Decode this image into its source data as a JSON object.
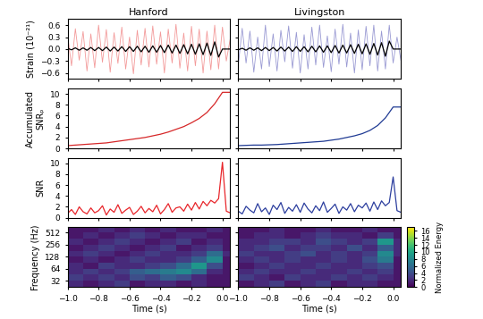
{
  "chart_data": [
    {
      "type": "line",
      "title": "Hanford",
      "ylabel": "Strain (10⁻²¹)",
      "tick_labels": "y",
      "x": [
        -1.0,
        -0.975,
        -0.95,
        -0.925,
        -0.9,
        -0.875,
        -0.85,
        -0.825,
        -0.8,
        -0.775,
        -0.75,
        -0.725,
        -0.7,
        -0.675,
        -0.65,
        -0.625,
        -0.6,
        -0.575,
        -0.55,
        -0.525,
        -0.5,
        -0.475,
        -0.45,
        -0.425,
        -0.4,
        -0.375,
        -0.35,
        -0.325,
        -0.3,
        -0.275,
        -0.25,
        -0.225,
        -0.2,
        -0.175,
        -0.15,
        -0.125,
        -0.1,
        -0.075,
        -0.05,
        -0.025,
        0.0,
        0.025,
        0.05
      ],
      "series": [
        {
          "color": "#f08080",
          "values": [
            0.35,
            -0.42,
            0.51,
            -0.28,
            0.44,
            -0.55,
            0.38,
            -0.47,
            0.6,
            -0.33,
            0.49,
            -0.58,
            0.41,
            -0.36,
            0.55,
            -0.5,
            0.3,
            -0.62,
            0.47,
            -0.4,
            0.52,
            -0.45,
            0.58,
            -0.38,
            0.43,
            -0.6,
            0.5,
            -0.35,
            0.62,
            -0.48,
            0.4,
            -0.55,
            0.57,
            -0.42,
            0.5,
            -0.6,
            0.45,
            -0.52,
            0.6,
            -0.5,
            0.55,
            -0.3,
            0.25
          ]
        },
        {
          "color": "#000000",
          "values": [
            0.02,
            -0.02,
            0.03,
            -0.03,
            0.03,
            -0.03,
            0.04,
            -0.04,
            0.04,
            -0.04,
            0.05,
            -0.05,
            0.05,
            -0.05,
            0.06,
            -0.06,
            0.06,
            -0.06,
            0.07,
            -0.07,
            0.07,
            -0.08,
            0.08,
            -0.08,
            0.09,
            -0.09,
            0.1,
            -0.1,
            0.1,
            -0.11,
            0.11,
            -0.12,
            0.12,
            -0.13,
            0.13,
            -0.14,
            0.15,
            -0.16,
            0.18,
            -0.2,
            0.0,
            0.0,
            0.0
          ]
        }
      ],
      "xlim": [
        -1.0,
        0.05
      ],
      "ylim": [
        -0.75,
        0.75
      ],
      "xticks": [
        {
          "value": -1.0,
          "label": "−1.0"
        },
        {
          "value": -0.8,
          "label": "−0.8"
        },
        {
          "value": -0.6,
          "label": "−0.6"
        },
        {
          "value": -0.4,
          "label": "−0.4"
        },
        {
          "value": -0.2,
          "label": "−0.2"
        },
        0.0
      ],
      "yticks": [
        {
          "value": -0.6,
          "label": "−0.6"
        },
        {
          "value": -0.3,
          "label": "−0.3"
        },
        0.0,
        0.3,
        0.6
      ]
    },
    {
      "type": "line",
      "title": "Livingston",
      "tick_labels": false,
      "x": [
        -1.0,
        -0.975,
        -0.95,
        -0.925,
        -0.9,
        -0.875,
        -0.85,
        -0.825,
        -0.8,
        -0.775,
        -0.75,
        -0.725,
        -0.7,
        -0.675,
        -0.65,
        -0.625,
        -0.6,
        -0.575,
        -0.55,
        -0.525,
        -0.5,
        -0.475,
        -0.45,
        -0.425,
        -0.4,
        -0.375,
        -0.35,
        -0.325,
        -0.3,
        -0.275,
        -0.25,
        -0.225,
        -0.2,
        -0.175,
        -0.15,
        -0.125,
        -0.1,
        -0.075,
        -0.05,
        -0.025,
        0.0,
        0.025,
        0.05
      ],
      "series": [
        {
          "color": "#8080c8",
          "values": [
            -0.4,
            0.52,
            -0.35,
            0.45,
            -0.58,
            0.3,
            -0.5,
            0.6,
            -0.44,
            0.38,
            -0.55,
            0.47,
            -0.32,
            0.58,
            -0.48,
            0.42,
            -0.6,
            0.36,
            -0.5,
            0.55,
            -0.4,
            0.6,
            -0.46,
            0.33,
            -0.57,
            0.5,
            -0.38,
            0.62,
            -0.45,
            0.4,
            -0.6,
            0.48,
            -0.52,
            0.57,
            -0.42,
            0.6,
            -0.55,
            0.45,
            -0.5,
            0.6,
            -0.35,
            0.3,
            -0.28
          ]
        },
        {
          "color": "#000000",
          "values": [
            -0.02,
            0.02,
            -0.03,
            0.03,
            -0.03,
            0.03,
            -0.04,
            0.04,
            -0.04,
            0.04,
            -0.05,
            0.05,
            -0.05,
            0.05,
            -0.06,
            0.06,
            -0.06,
            0.06,
            -0.07,
            0.07,
            -0.07,
            0.08,
            -0.08,
            0.08,
            -0.09,
            0.09,
            -0.1,
            0.1,
            -0.1,
            0.11,
            -0.11,
            0.12,
            -0.12,
            0.13,
            -0.13,
            0.14,
            -0.15,
            0.16,
            -0.18,
            0.2,
            0.0,
            0.0,
            0.0
          ]
        }
      ],
      "xlim": [
        -1.0,
        0.05
      ],
      "ylim": [
        -0.75,
        0.75
      ],
      "xticks": [
        {
          "value": -1.0,
          "label": "−1.0"
        },
        {
          "value": -0.8,
          "label": "−0.8"
        },
        {
          "value": -0.6,
          "label": "−0.6"
        },
        {
          "value": -0.4,
          "label": "−0.4"
        },
        {
          "value": -0.2,
          "label": "−0.2"
        },
        0.0
      ],
      "yticks": [
        {
          "value": -0.6,
          "label": "−0.6"
        },
        {
          "value": -0.3,
          "label": "−0.3"
        },
        0.0,
        0.3,
        0.6
      ]
    },
    {
      "type": "line",
      "ylabel": "Accumulated\nSNRₚ",
      "tick_labels": "y",
      "x": [
        -1.0,
        -0.95,
        -0.9,
        -0.85,
        -0.8,
        -0.75,
        -0.7,
        -0.65,
        -0.6,
        -0.55,
        -0.5,
        -0.45,
        -0.4,
        -0.35,
        -0.3,
        -0.25,
        -0.2,
        -0.15,
        -0.1,
        -0.05,
        0.0,
        0.05
      ],
      "series": [
        {
          "color": "#d62728",
          "values": [
            0.5,
            0.6,
            0.7,
            0.8,
            0.9,
            1.0,
            1.2,
            1.4,
            1.6,
            1.8,
            2.0,
            2.3,
            2.6,
            3.0,
            3.5,
            4.0,
            4.7,
            5.5,
            6.6,
            8.2,
            10.3,
            10.3
          ]
        }
      ],
      "xlim": [
        -1.0,
        0.05
      ],
      "ylim": [
        0,
        11
      ],
      "xticks": [
        {
          "value": -1.0,
          "label": "−1.0"
        },
        {
          "value": -0.8,
          "label": "−0.8"
        },
        {
          "value": -0.6,
          "label": "−0.6"
        },
        {
          "value": -0.4,
          "label": "−0.4"
        },
        {
          "value": -0.2,
          "label": "−0.2"
        },
        0.0
      ],
      "yticks": [
        0,
        2,
        4,
        6,
        8,
        10
      ]
    },
    {
      "type": "line",
      "tick_labels": false,
      "x": [
        -1.0,
        -0.95,
        -0.9,
        -0.85,
        -0.8,
        -0.75,
        -0.7,
        -0.65,
        -0.6,
        -0.55,
        -0.5,
        -0.45,
        -0.4,
        -0.35,
        -0.3,
        -0.25,
        -0.2,
        -0.15,
        -0.1,
        -0.05,
        0.0,
        0.05
      ],
      "series": [
        {
          "color": "#1f3a93",
          "values": [
            0.5,
            0.55,
            0.6,
            0.6,
            0.65,
            0.7,
            0.8,
            0.9,
            1.0,
            1.1,
            1.2,
            1.3,
            1.5,
            1.7,
            2.0,
            2.3,
            2.7,
            3.3,
            4.2,
            5.6,
            7.6,
            7.6
          ]
        }
      ],
      "xlim": [
        -1.0,
        0.05
      ],
      "ylim": [
        0,
        11
      ],
      "xticks": [
        {
          "value": -1.0,
          "label": "−1.0"
        },
        {
          "value": -0.8,
          "label": "−0.8"
        },
        {
          "value": -0.6,
          "label": "−0.6"
        },
        {
          "value": -0.4,
          "label": "−0.4"
        },
        {
          "value": -0.2,
          "label": "−0.2"
        },
        0.0
      ],
      "yticks": [
        0,
        2,
        4,
        6,
        8,
        10
      ]
    },
    {
      "type": "line",
      "ylabel": "SNR",
      "tick_labels": "y",
      "x": [
        -1.0,
        -0.975,
        -0.95,
        -0.925,
        -0.9,
        -0.875,
        -0.85,
        -0.825,
        -0.8,
        -0.775,
        -0.75,
        -0.725,
        -0.7,
        -0.675,
        -0.65,
        -0.625,
        -0.6,
        -0.575,
        -0.55,
        -0.525,
        -0.5,
        -0.475,
        -0.45,
        -0.425,
        -0.4,
        -0.375,
        -0.35,
        -0.325,
        -0.3,
        -0.275,
        -0.25,
        -0.225,
        -0.2,
        -0.175,
        -0.15,
        -0.125,
        -0.1,
        -0.075,
        -0.05,
        -0.025,
        0.0,
        0.025,
        0.05
      ],
      "series": [
        {
          "color": "#e8262b",
          "values": [
            0.8,
            1.5,
            0.6,
            2.0,
            1.1,
            0.7,
            1.8,
            0.9,
            1.3,
            2.2,
            0.5,
            1.6,
            1.0,
            2.4,
            0.8,
            1.4,
            1.9,
            0.6,
            1.2,
            2.1,
            0.9,
            1.7,
            1.1,
            2.3,
            0.7,
            1.5,
            2.6,
            1.0,
            1.8,
            2.0,
            1.2,
            2.5,
            1.4,
            2.8,
            1.6,
            3.0,
            2.2,
            3.2,
            2.7,
            3.5,
            10.2,
            1.2,
            0.9
          ]
        }
      ],
      "xlim": [
        -1.0,
        0.05
      ],
      "ylim": [
        0,
        11
      ],
      "xticks": [
        {
          "value": -1.0,
          "label": "−1.0"
        },
        {
          "value": -0.8,
          "label": "−0.8"
        },
        {
          "value": -0.6,
          "label": "−0.6"
        },
        {
          "value": -0.4,
          "label": "−0.4"
        },
        {
          "value": -0.2,
          "label": "−0.2"
        },
        0.0
      ],
      "yticks": [
        0,
        2,
        4,
        6,
        8,
        10
      ]
    },
    {
      "type": "line",
      "tick_labels": false,
      "x": [
        -1.0,
        -0.975,
        -0.95,
        -0.925,
        -0.9,
        -0.875,
        -0.85,
        -0.825,
        -0.8,
        -0.775,
        -0.75,
        -0.725,
        -0.7,
        -0.675,
        -0.65,
        -0.625,
        -0.6,
        -0.575,
        -0.55,
        -0.525,
        -0.5,
        -0.475,
        -0.45,
        -0.425,
        -0.4,
        -0.375,
        -0.35,
        -0.325,
        -0.3,
        -0.275,
        -0.25,
        -0.225,
        -0.2,
        -0.175,
        -0.15,
        -0.125,
        -0.1,
        -0.075,
        -0.05,
        -0.025,
        0.0,
        0.025,
        0.05
      ],
      "series": [
        {
          "color": "#2c3e9e",
          "values": [
            1.2,
            0.7,
            2.1,
            1.4,
            0.9,
            2.6,
            1.1,
            1.8,
            0.6,
            2.3,
            1.5,
            2.8,
            0.8,
            1.9,
            1.2,
            2.4,
            1.0,
            2.7,
            1.6,
            0.9,
            2.2,
            1.3,
            2.9,
            1.0,
            1.7,
            2.5,
            0.8,
            2.0,
            1.4,
            2.6,
            1.1,
            2.3,
            1.8,
            2.7,
            1.2,
            2.9,
            1.5,
            3.1,
            2.2,
            2.8,
            7.5,
            1.3,
            1.0
          ]
        }
      ],
      "xlim": [
        -1.0,
        0.05
      ],
      "ylim": [
        0,
        11
      ],
      "xticks": [
        {
          "value": -1.0,
          "label": "−1.0"
        },
        {
          "value": -0.8,
          "label": "−0.8"
        },
        {
          "value": -0.6,
          "label": "−0.6"
        },
        {
          "value": -0.4,
          "label": "−0.4"
        },
        {
          "value": -0.2,
          "label": "−0.2"
        },
        0.0
      ],
      "yticks": [
        0,
        2,
        4,
        6,
        8,
        10
      ]
    },
    {
      "type": "heatmap",
      "ylabel": "Frequency (Hz)",
      "xlabel": "Time (s)",
      "log": "y",
      "x": [
        -1.0,
        -0.9,
        -0.8,
        -0.7,
        -0.6,
        -0.5,
        -0.4,
        -0.3,
        -0.2,
        -0.1,
        0.0,
        0.05
      ],
      "y": [
        16,
        22.6,
        32,
        45.3,
        64,
        90.5,
        128,
        181,
        256,
        362,
        512,
        724
      ],
      "cells": [
        [
          1,
          2,
          1,
          1,
          2,
          1,
          1,
          2,
          1,
          1,
          1
        ],
        [
          2,
          1,
          2,
          3,
          1,
          2,
          2,
          1,
          2,
          1,
          1
        ],
        [
          3,
          2,
          3,
          2,
          4,
          3,
          5,
          4,
          2,
          1,
          1
        ],
        [
          2,
          3,
          2,
          3,
          5,
          6,
          7,
          8,
          6,
          2,
          1
        ],
        [
          2,
          1,
          3,
          2,
          2,
          3,
          4,
          6,
          9,
          4,
          1
        ],
        [
          1,
          2,
          1,
          2,
          3,
          2,
          2,
          3,
          5,
          8,
          1
        ],
        [
          2,
          3,
          2,
          1,
          2,
          3,
          2,
          2,
          3,
          6,
          2
        ],
        [
          1,
          2,
          3,
          2,
          1,
          2,
          3,
          1,
          2,
          3,
          1
        ],
        [
          2,
          1,
          2,
          3,
          2,
          1,
          2,
          3,
          1,
          2,
          1
        ],
        [
          1,
          2,
          1,
          2,
          3,
          2,
          1,
          2,
          2,
          1,
          1
        ],
        [
          1,
          1,
          2,
          1,
          2,
          1,
          2,
          1,
          1,
          2,
          1
        ]
      ],
      "color_range": [
        0,
        17
      ],
      "xlim": [
        -1.0,
        0.05
      ],
      "ylim": [
        22,
        700
      ],
      "xticks": [
        {
          "value": -1.0,
          "label": "−1.0"
        },
        {
          "value": -0.8,
          "label": "−0.8"
        },
        {
          "value": -0.6,
          "label": "−0.6"
        },
        {
          "value": -0.4,
          "label": "−0.4"
        },
        {
          "value": -0.2,
          "label": "−0.2"
        },
        0.0
      ],
      "yticks": [
        32,
        64,
        128,
        256,
        512
      ]
    },
    {
      "type": "heatmap",
      "xlabel": "Time (s)",
      "log": "y",
      "tick_labels": "x",
      "x": [
        -1.0,
        -0.9,
        -0.8,
        -0.7,
        -0.6,
        -0.5,
        -0.4,
        -0.3,
        -0.2,
        -0.1,
        0.0,
        0.05
      ],
      "y": [
        16,
        22.6,
        32,
        45.3,
        64,
        90.5,
        128,
        181,
        256,
        362,
        512,
        724
      ],
      "cells": [
        [
          2,
          1,
          1,
          2,
          1,
          1,
          2,
          1,
          1,
          1,
          1
        ],
        [
          1,
          2,
          3,
          1,
          2,
          3,
          1,
          2,
          2,
          1,
          1
        ],
        [
          3,
          2,
          1,
          3,
          2,
          2,
          3,
          2,
          3,
          2,
          1
        ],
        [
          2,
          3,
          2,
          2,
          3,
          2,
          2,
          3,
          2,
          3,
          1
        ],
        [
          1,
          2,
          3,
          2,
          2,
          3,
          2,
          2,
          3,
          4,
          1
        ],
        [
          2,
          3,
          2,
          3,
          2,
          2,
          3,
          2,
          4,
          7,
          1
        ],
        [
          3,
          2,
          2,
          3,
          4,
          2,
          3,
          2,
          3,
          8,
          2
        ],
        [
          2,
          3,
          4,
          2,
          3,
          3,
          2,
          4,
          2,
          5,
          2
        ],
        [
          2,
          2,
          3,
          3,
          2,
          4,
          3,
          2,
          3,
          9,
          2
        ],
        [
          1,
          2,
          2,
          1,
          2,
          3,
          2,
          2,
          1,
          3,
          1
        ],
        [
          1,
          1,
          2,
          1,
          1,
          2,
          1,
          1,
          2,
          1,
          1
        ]
      ],
      "color_range": [
        0,
        17
      ],
      "colorbar": {
        "label": "Normalized Energy",
        "ticks": [
          0,
          2,
          4,
          6,
          8,
          10,
          12,
          14,
          16
        ]
      },
      "xlim": [
        -1.0,
        0.05
      ],
      "ylim": [
        22,
        700
      ],
      "xticks": [
        {
          "value": -1.0,
          "label": "−1.0"
        },
        {
          "value": -0.8,
          "label": "−0.8"
        },
        {
          "value": -0.6,
          "label": "−0.6"
        },
        {
          "value": -0.4,
          "label": "−0.4"
        },
        {
          "value": -0.2,
          "label": "−0.2"
        },
        0.0
      ],
      "yticks": [
        32,
        64,
        128,
        256,
        512
      ]
    }
  ]
}
